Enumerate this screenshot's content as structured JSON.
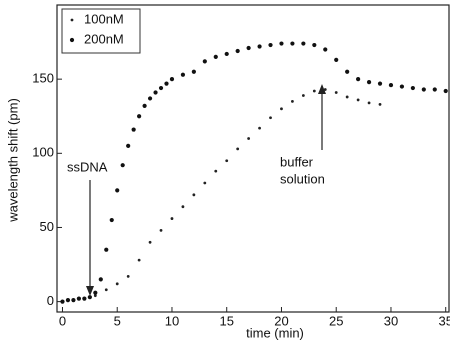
{
  "chart_data": {
    "type": "scatter",
    "x_label": "time (min)",
    "y_label": "wavelength shift (pm)",
    "xlim": [
      -0.5,
      35.3
    ],
    "ylim": [
      -7,
      200
    ],
    "xticks": [
      0,
      5,
      10,
      15,
      20,
      25,
      30,
      35
    ],
    "yticks": [
      0,
      50,
      100,
      150
    ],
    "legend": "upper left",
    "annotations": [
      {
        "lines": [
          "ssDNA"
        ]
      },
      {
        "lines": [
          "buffer",
          "solution"
        ]
      }
    ],
    "series": [
      {
        "name": "100nM",
        "color": "#222222",
        "x": [
          0,
          1,
          2,
          3,
          4,
          5,
          6,
          7,
          8,
          9,
          10,
          11,
          12,
          13,
          14,
          15,
          16,
          17,
          18,
          19,
          20,
          21,
          22,
          23,
          24,
          25,
          26,
          27,
          28,
          29
        ],
        "values": [
          0,
          1,
          2,
          4,
          8,
          12,
          17,
          28,
          40,
          48,
          56,
          64,
          72,
          80,
          88,
          95,
          103,
          110,
          117,
          124,
          130,
          135,
          139,
          142,
          143,
          141,
          138,
          136,
          134,
          133
        ]
      },
      {
        "name": "200nM",
        "color": "#111111",
        "x": [
          0,
          0.5,
          1,
          1.5,
          2,
          2.5,
          3,
          3.5,
          4,
          4.5,
          5,
          5.5,
          6,
          6.5,
          7,
          7.5,
          8,
          8.5,
          9,
          9.5,
          10,
          11,
          12,
          13,
          14,
          15,
          16,
          17,
          18,
          19,
          20,
          21,
          22,
          23,
          24,
          25,
          26,
          27,
          28,
          29,
          30,
          31,
          32,
          33,
          34,
          35
        ],
        "values": [
          0,
          1,
          1,
          2,
          2,
          3,
          6,
          15,
          35,
          55,
          75,
          92,
          105,
          116,
          125,
          132,
          137,
          141,
          144,
          147,
          150,
          153,
          155,
          162,
          165,
          167,
          169,
          171,
          172,
          173,
          174,
          174,
          174,
          173,
          170,
          163,
          155,
          150,
          148,
          147,
          146,
          145,
          144,
          143,
          143,
          142
        ]
      }
    ]
  }
}
